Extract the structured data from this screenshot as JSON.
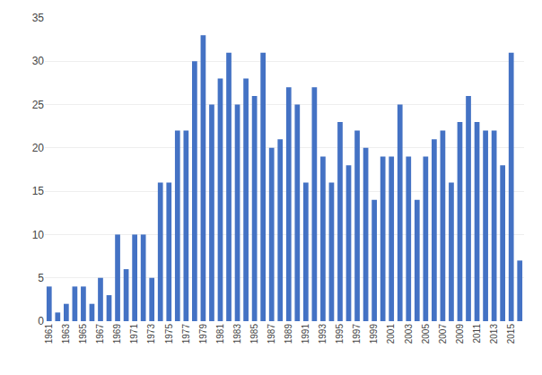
{
  "chart_data": {
    "type": "bar",
    "categories": [
      "1961",
      null,
      "1963",
      null,
      "1965",
      null,
      "1967",
      null,
      "1969",
      null,
      "1971",
      null,
      "1973",
      null,
      "1975",
      null,
      "1977",
      null,
      "1979",
      null,
      "1981",
      null,
      "1983",
      null,
      "1985",
      null,
      "1987",
      null,
      "1989",
      null,
      "1991",
      null,
      "1993",
      null,
      "1995",
      null,
      "1997",
      null,
      "1999",
      null,
      "2001",
      null,
      "2003",
      null,
      "2005",
      null,
      "2007",
      null,
      "2009",
      null,
      "2011",
      null,
      "2013",
      null,
      "2015",
      null
    ],
    "values": [
      4,
      1,
      2,
      4,
      4,
      2,
      5,
      3,
      10,
      6,
      10,
      10,
      5,
      16,
      16,
      22,
      22,
      30,
      33,
      25,
      28,
      31,
      25,
      28,
      26,
      31,
      20,
      21,
      27,
      25,
      16,
      27,
      19,
      16,
      23,
      18,
      22,
      20,
      14,
      19,
      19,
      25,
      19,
      14,
      19,
      21,
      22,
      16,
      23,
      26,
      23,
      22,
      22,
      18,
      31,
      7
    ],
    "color": "#4472C4",
    "ylim": [
      0,
      35
    ],
    "yticks": [
      0,
      5,
      10,
      15,
      20,
      25,
      30,
      35
    ],
    "grid": true
  }
}
